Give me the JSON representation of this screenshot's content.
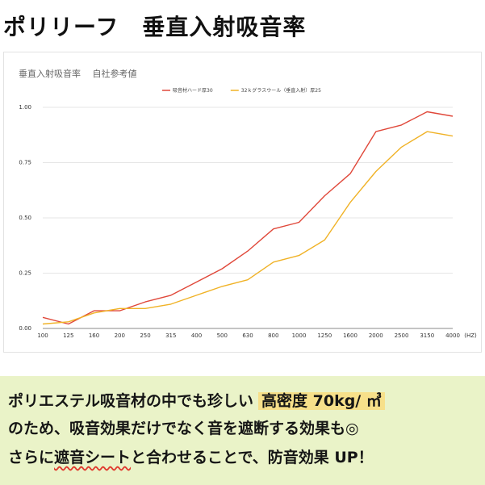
{
  "header": {
    "title": "ポリリーフ　垂直入射吸音率"
  },
  "chart_data": {
    "type": "line",
    "title": "垂直入射吸音率　 自社参考値",
    "xlabel": "(HZ)",
    "ylabel": "",
    "categories": [
      "100",
      "125",
      "160",
      "200",
      "250",
      "315",
      "400",
      "500",
      "630",
      "800",
      "1000",
      "1250",
      "1600",
      "2000",
      "2500",
      "3150",
      "4000"
    ],
    "ylim": [
      0,
      1.0
    ],
    "yticks": [
      "0.00",
      "0.25",
      "0.50",
      "0.75",
      "1.00"
    ],
    "grid": true,
    "legend_position": "top-center",
    "series": [
      {
        "name": "吸音材ハード厚30",
        "color": "#e0483a",
        "values": [
          0.05,
          0.02,
          0.08,
          0.08,
          0.12,
          0.15,
          0.21,
          0.27,
          0.35,
          0.45,
          0.48,
          0.6,
          0.7,
          0.89,
          0.92,
          0.98,
          0.96
        ]
      },
      {
        "name": "32ｋグラスウール（垂直入射）厚25",
        "color": "#f0b226",
        "values": [
          0.02,
          0.03,
          0.07,
          0.09,
          0.09,
          0.11,
          0.15,
          0.19,
          0.22,
          0.3,
          0.33,
          0.4,
          0.57,
          0.71,
          0.82,
          0.89,
          0.87
        ]
      }
    ]
  },
  "text": {
    "line1_a": "ポリエステル吸音材の中でも珍しい",
    "line1_hl": "高密度 70kg/ ㎥",
    "line2": "のため、吸音効果だけでなく音を遮断する効果も◎",
    "line3_a": "さらに",
    "line3_u": "遮音シート",
    "line3_b": "と合わせることで、防音効果 UP！"
  }
}
